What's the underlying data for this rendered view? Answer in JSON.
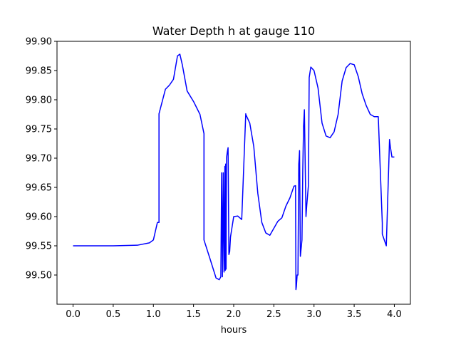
{
  "chart_data": {
    "type": "line",
    "title": "Water Depth h at gauge 110",
    "xlabel": "hours",
    "ylabel": "",
    "xlim": [
      -0.2,
      4.2
    ],
    "ylim": [
      99.45,
      99.9
    ],
    "x_ticks": [
      0.0,
      0.5,
      1.0,
      1.5,
      2.0,
      2.5,
      3.0,
      3.5,
      4.0
    ],
    "x_tick_labels": [
      "0.0",
      "0.5",
      "1.0",
      "1.5",
      "2.0",
      "2.5",
      "3.0",
      "3.5",
      "4.0"
    ],
    "y_ticks": [
      99.5,
      99.55,
      99.6,
      99.65,
      99.7,
      99.75,
      99.8,
      99.85,
      99.9
    ],
    "y_tick_labels": [
      "99.50",
      "99.55",
      "99.60",
      "99.65",
      "99.70",
      "99.75",
      "99.80",
      "99.85",
      "99.90"
    ],
    "grid": false,
    "line_color": "#0000ff",
    "series": [
      {
        "x": [
          0.0,
          0.5,
          0.8,
          0.95,
          1.0,
          1.05,
          1.07,
          1.07,
          1.15,
          1.2,
          1.25,
          1.3,
          1.33,
          1.36,
          1.42,
          1.5,
          1.58,
          1.63,
          1.63,
          1.7,
          1.78,
          1.82,
          1.84,
          1.85,
          1.86,
          1.87,
          1.88,
          1.89,
          1.895,
          1.9,
          1.905,
          1.91,
          1.92,
          1.93,
          1.94,
          1.95,
          1.96,
          2.0,
          2.05,
          2.1,
          2.15,
          2.15,
          2.2,
          2.25,
          2.3,
          2.35,
          2.4,
          2.45,
          2.5,
          2.55,
          2.6,
          2.65,
          2.7,
          2.75,
          2.77,
          2.775,
          2.78,
          2.79,
          2.8,
          2.81,
          2.815,
          2.82,
          2.83,
          2.85,
          2.86,
          2.87,
          2.88,
          2.9,
          2.91,
          2.93,
          2.94,
          2.96,
          3.0,
          3.05,
          3.1,
          3.15,
          3.2,
          3.25,
          3.3,
          3.35,
          3.4,
          3.45,
          3.5,
          3.55,
          3.6,
          3.65,
          3.7,
          3.75,
          3.8,
          3.85,
          3.85,
          3.9,
          3.94,
          3.94,
          3.95,
          3.97,
          4.0
        ],
        "y": [
          99.55,
          99.55,
          99.551,
          99.555,
          99.56,
          99.59,
          99.59,
          99.776,
          99.818,
          99.825,
          99.835,
          99.875,
          99.878,
          99.86,
          99.815,
          99.797,
          99.775,
          99.742,
          99.56,
          99.53,
          99.495,
          99.492,
          99.497,
          99.675,
          99.497,
          99.675,
          99.505,
          99.686,
          99.508,
          99.69,
          99.51,
          99.7,
          99.71,
          99.718,
          99.535,
          99.54,
          99.565,
          99.6,
          99.601,
          99.595,
          99.776,
          99.775,
          99.76,
          99.72,
          99.64,
          99.59,
          99.572,
          99.568,
          99.58,
          99.592,
          99.598,
          99.618,
          99.632,
          99.652,
          99.653,
          99.475,
          99.48,
          99.5,
          99.5,
          99.69,
          99.7,
          99.713,
          99.532,
          99.56,
          99.68,
          99.755,
          99.783,
          99.6,
          99.62,
          99.653,
          99.838,
          99.856,
          99.85,
          99.82,
          99.76,
          99.738,
          99.735,
          99.745,
          99.775,
          99.832,
          99.855,
          99.862,
          99.86,
          99.84,
          99.81,
          99.79,
          99.775,
          99.771,
          99.771,
          99.589,
          99.57,
          99.55,
          99.731,
          99.732,
          99.72,
          99.702,
          99.702
        ]
      }
    ]
  }
}
